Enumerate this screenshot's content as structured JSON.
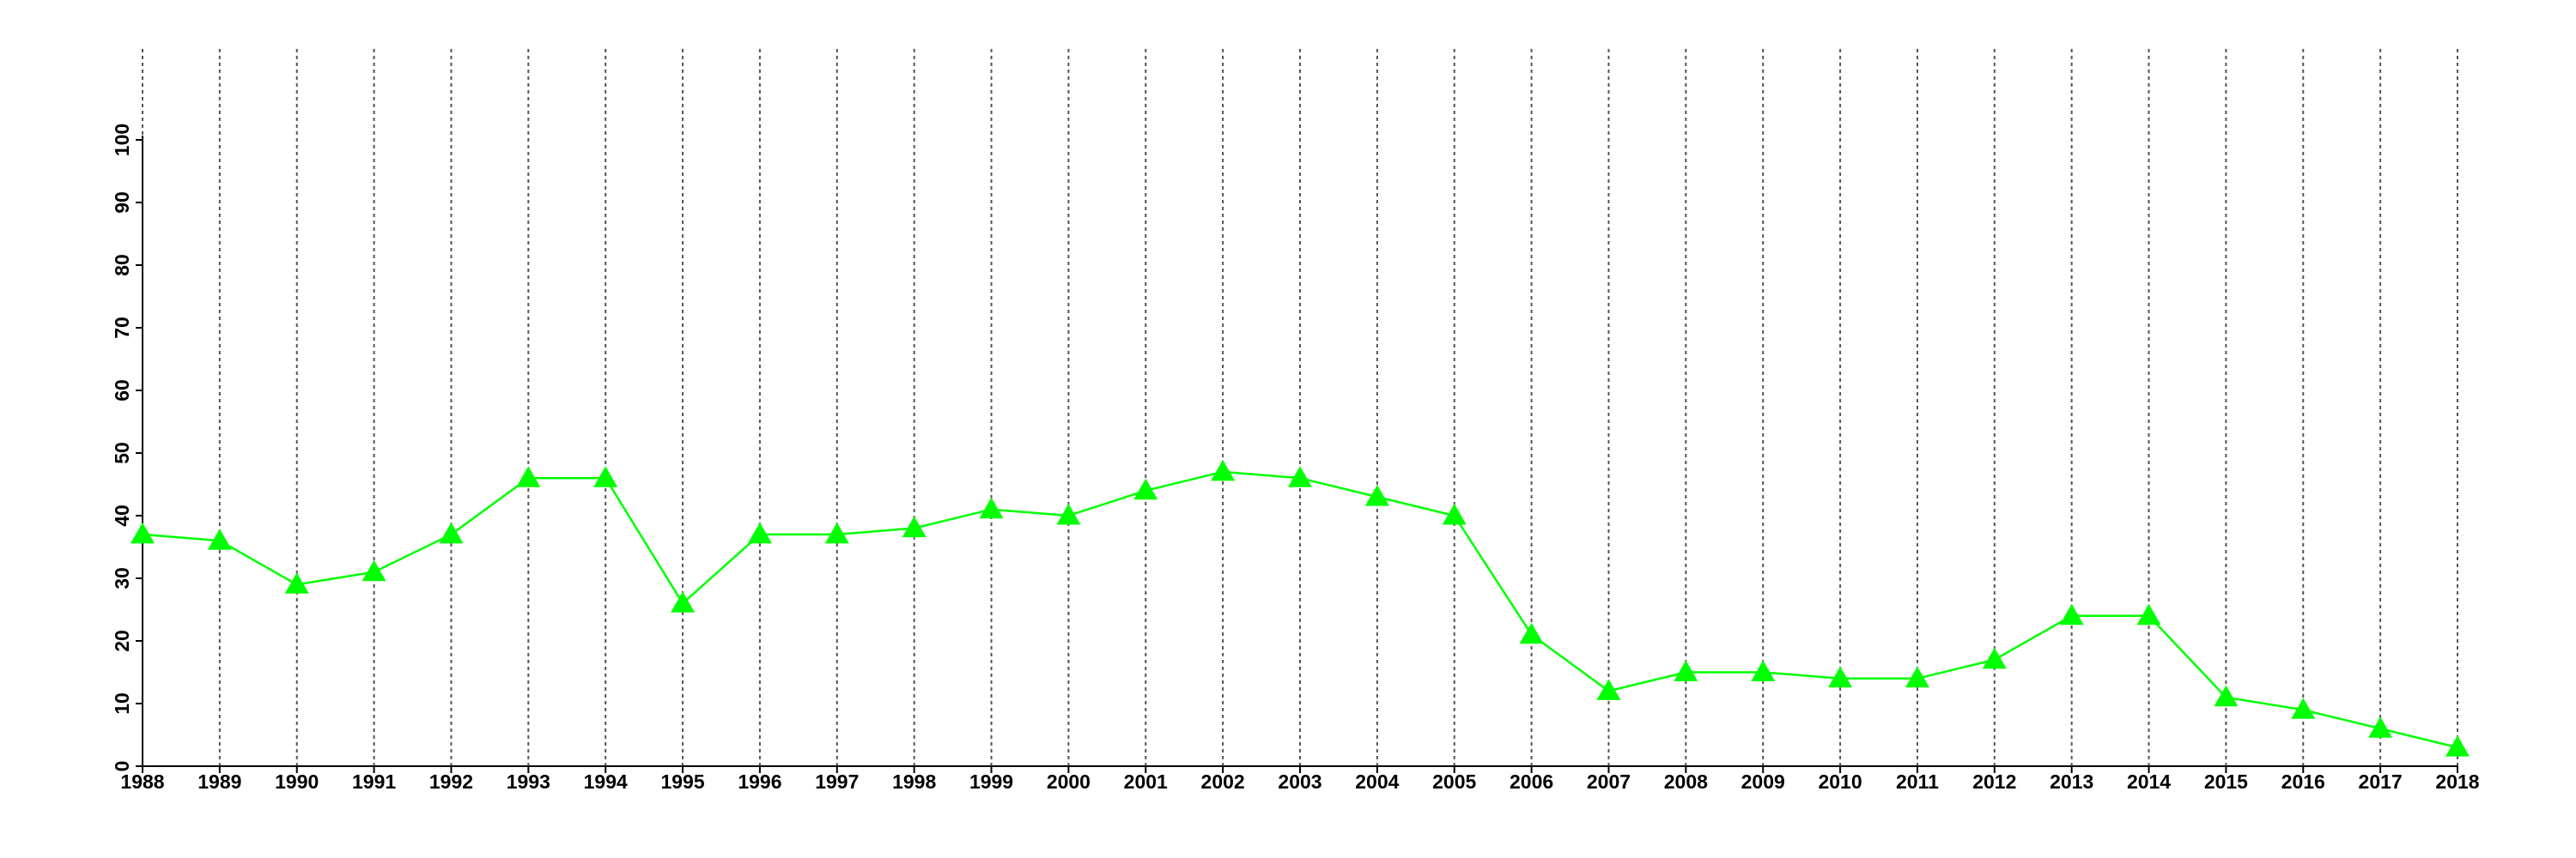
{
  "chart_data": {
    "type": "line",
    "categories": [
      "1988",
      "1989",
      "1990",
      "1991",
      "1992",
      "1993",
      "1994",
      "1995",
      "1996",
      "1997",
      "1998",
      "1999",
      "2000",
      "2001",
      "2002",
      "2003",
      "2004",
      "2005",
      "2006",
      "2007",
      "2008",
      "2009",
      "2010",
      "2011",
      "2012",
      "2013",
      "2014",
      "2015",
      "2016",
      "2017",
      "2018"
    ],
    "series": [
      {
        "color": "#00ff00",
        "marker": "triangle",
        "values": [
          37,
          36,
          29,
          31,
          37,
          46,
          46,
          26,
          37,
          37,
          38,
          41,
          40,
          44,
          47,
          46,
          43,
          40,
          21,
          12,
          15,
          15,
          14,
          14,
          17,
          24,
          24,
          11,
          9,
          6,
          3
        ]
      }
    ],
    "ylim": [
      0,
      100
    ],
    "yticks": [
      0,
      10,
      20,
      30,
      40,
      50,
      60,
      70,
      80,
      90,
      100
    ],
    "grid": "x"
  }
}
